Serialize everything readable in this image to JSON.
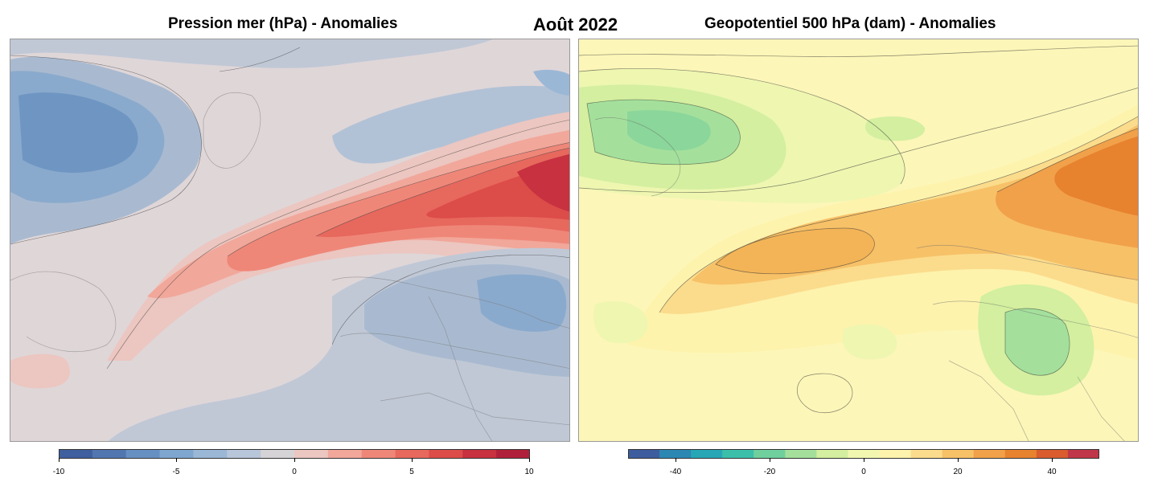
{
  "header": {
    "main_title": "Août 2022"
  },
  "left_panel": {
    "title": "Pression mer (hPa) - Anomalies",
    "colorbar": {
      "min": -10,
      "max": 10,
      "ticks": [
        "-10",
        "-5",
        "0",
        "5",
        "10"
      ],
      "colors": [
        "#3f5f9f",
        "#5276b0",
        "#6790c2",
        "#7fa6cf",
        "#9bb7d6",
        "#b8c6da",
        "#d6d3d6",
        "#ecc6c0",
        "#f1a79a",
        "#ef8779",
        "#e7685d",
        "#dc4c49",
        "#c73140",
        "#b0203a"
      ]
    }
  },
  "right_panel": {
    "title": "Geopotentiel 500 hPa (dam) - Anomalies",
    "colorbar": {
      "min": -50,
      "max": 50,
      "ticks": [
        "-40",
        "-20",
        "0",
        "20",
        "40"
      ],
      "colors": [
        "#3e5d9e",
        "#2c87b3",
        "#27a7b5",
        "#3cbfaa",
        "#6fd09d",
        "#a4e09c",
        "#d3ef9f",
        "#f2f7b0",
        "#fdf3ad",
        "#fbdc8c",
        "#f7c168",
        "#f1a14a",
        "#e7822f",
        "#d95b2e",
        "#c1374a"
      ]
    }
  }
}
